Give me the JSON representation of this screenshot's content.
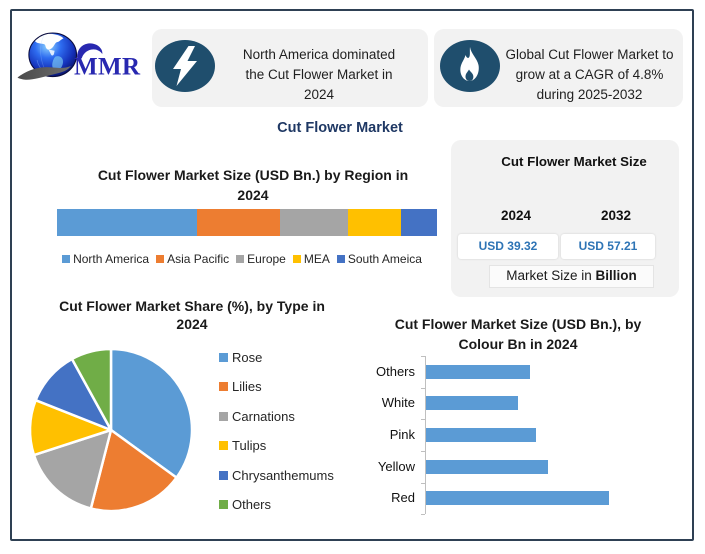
{
  "brand": {
    "logo_text": "MMR"
  },
  "page_title": "Cut Flower Market",
  "callouts": [
    {
      "icon": "lightning-icon",
      "lines": [
        "North America dominated",
        "the Cut Flower Market in",
        "2024"
      ],
      "text": "North America dominated the Cut Flower Market in 2024"
    },
    {
      "icon": "flame-icon",
      "lines": [
        "Global Cut Flower Market to",
        "grow at a CAGR of 4.8%",
        "during 2025-2032"
      ],
      "text": "Global Cut Flower Market to grow at a CAGR of 4.8% during 2025-2032"
    }
  ],
  "market_size_panel": {
    "title": "Cut Flower Market Size",
    "columns": [
      {
        "year": "2024",
        "value": "USD 39.32"
      },
      {
        "year": "2032",
        "value": "USD 57.21"
      }
    ],
    "note_prefix": "Market Size in ",
    "note_bold": "Billion"
  },
  "colors": {
    "icon_circle": "#1f4e6d",
    "callout_bg": "#f2f2f2",
    "panel_bg": "#f2f2f2",
    "heading_text": "#1f3864",
    "value_text": "#2e74b5",
    "border": "#2e4053",
    "logo_text": "#2929ad"
  },
  "chart_data": [
    {
      "type": "bar",
      "variant": "stacked-horizontal",
      "title": "Cut Flower Market Size (USD Bn.) by Region in 2024",
      "title_lines": [
        "Cut Flower Market Size (USD Bn.) by Region in",
        "2024"
      ],
      "categories": [
        "North America",
        "Asia Pacific",
        "Europe",
        "MEA",
        "South Ameica"
      ],
      "values": [
        14.5,
        8.6,
        7.1,
        5.5,
        3.7
      ],
      "unit": "USD Bn.",
      "colors": [
        "#5B9BD5",
        "#ED7D31",
        "#A5A5A5",
        "#FFC000",
        "#4472C4"
      ],
      "legend_position": "bottom",
      "grid": false
    },
    {
      "type": "pie",
      "title": "Cut Flower Market Share (%), by Type in 2024",
      "title_lines": [
        "Cut Flower Market Share (%), by Type in",
        "2024"
      ],
      "categories": [
        "Rose",
        "Lilies",
        "Carnations",
        "Tulips",
        "Chrysanthemums",
        "Others"
      ],
      "values": [
        35,
        19,
        16,
        11,
        11,
        8
      ],
      "unit": "%",
      "colors": [
        "#5B9BD5",
        "#ED7D31",
        "#A5A5A5",
        "#FFC000",
        "#4472C4",
        "#70AD47"
      ],
      "legend_position": "right",
      "start_angle": 0,
      "direction": "clockwise"
    },
    {
      "type": "bar",
      "variant": "horizontal",
      "title": "Cut Flower Market Size (USD Bn.), by Colour Bn in 2024",
      "title_lines": [
        "Cut Flower Market Size (USD Bn.), by",
        "Colour Bn in 2024"
      ],
      "categories": [
        "Others",
        "White",
        "Pink",
        "Yellow",
        "Red"
      ],
      "values": [
        7.0,
        6.2,
        7.4,
        8.2,
        12.3
      ],
      "unit": "USD Bn.",
      "bar_color": "#5B9BD5",
      "xlim": [
        0,
        12.5
      ],
      "grid": false,
      "legend_position": "none"
    }
  ]
}
